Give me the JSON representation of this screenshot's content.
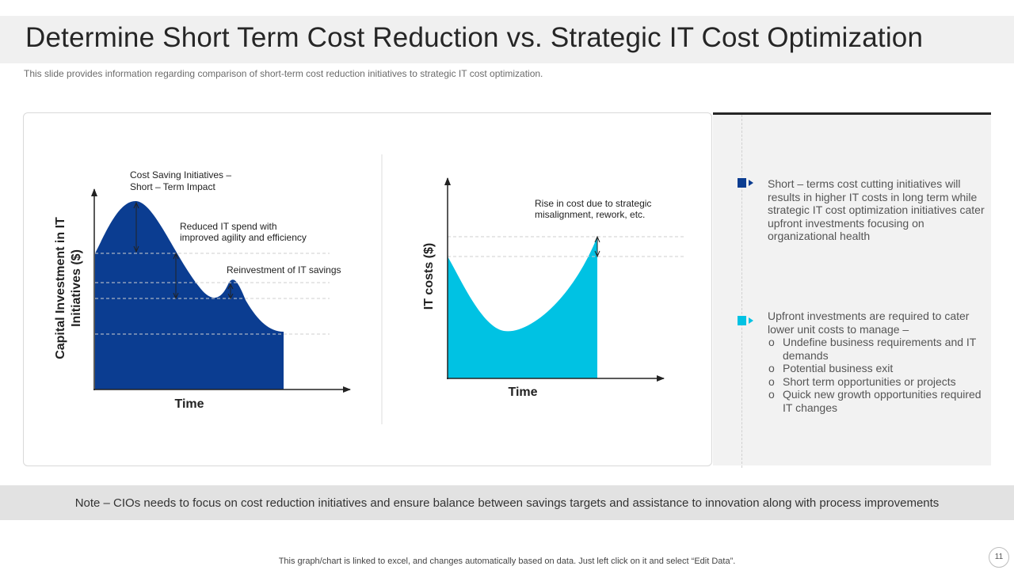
{
  "header": {
    "title": "Determine Short Term Cost Reduction vs. Strategic IT Cost Optimization",
    "subtitle": "This slide provides information regarding comparison of  short-term cost reduction initiatives to strategic IT cost optimization."
  },
  "left_chart": {
    "ylabel_line1": "Capital Investment in IT",
    "ylabel_line2": "Initiatives ($)",
    "xlabel": "Time",
    "annotation_1_line1": "Cost Saving Initiatives –",
    "annotation_1_line2": "Short – Term Impact",
    "annotation_2_line1": "Reduced IT spend with",
    "annotation_2_line2": "improved agility and efficiency",
    "annotation_3": "Reinvestment of IT  savings",
    "fill_color": "#0b3d91"
  },
  "right_chart": {
    "ylabel": "IT costs ($)",
    "xlabel": "Time",
    "annotation_line1": "Rise in cost due to strategic",
    "annotation_line2": "misalignment, rework, etc.",
    "fill_color": "#00c2e3"
  },
  "panel": {
    "bullet_1": "Short – terms cost cutting initiatives will results in higher IT costs in long term while strategic IT cost optimization initiatives cater upfront investments focusing on organizational health",
    "bullet_1_color": "#0b3d91",
    "bullet_2_intro": "Upfront investments are required to cater lower unit costs to manage –",
    "bullet_2_color": "#00c2e3",
    "sub_items": [
      "Undefine business requirements and IT demands",
      "Potential business exit",
      "Short term opportunities or projects",
      "Quick new growth opportunities required IT changes"
    ]
  },
  "note": "Note – CIOs needs to focus on cost reduction initiatives and ensure balance between savings targets and assistance to innovation along with process improvements",
  "footer": "This graph/chart is linked to excel,  and changes automatically based on data. Just left click on it and select “Edit Data”.",
  "page_number": "11"
}
